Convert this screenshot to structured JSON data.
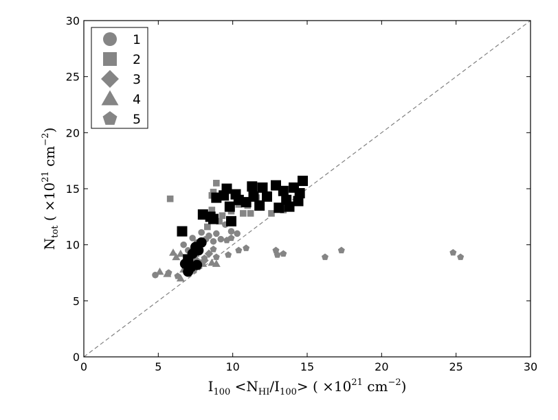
{
  "chart_data": {
    "type": "scatter",
    "xlim": [
      0,
      30
    ],
    "ylim": [
      0,
      30
    ],
    "xticks": [
      "0",
      "5",
      "10",
      "15",
      "20",
      "25",
      "30"
    ],
    "yticks": [
      "0",
      "5",
      "10",
      "15",
      "20",
      "25",
      "30"
    ],
    "xlabel": {
      "base": "I",
      "sub": "100",
      "mid1": " <N",
      "sub2": "HI",
      "mid2": "/I",
      "sub3": "100",
      "mid3": "> ( ×10",
      "sup": "21",
      "mid4": " cm",
      "sup2": "−2",
      "end": ")"
    },
    "ylabel": {
      "base": "N",
      "sub": "tot",
      "mid1": " ( ×10",
      "sup": "21",
      "mid2": " cm",
      "sup2": "−2",
      "end": ")"
    },
    "reference_line": {
      "style": "dashed",
      "color": "#808080",
      "from": [
        0,
        0
      ],
      "to": [
        30,
        30
      ]
    },
    "legend": {
      "placement": "top-left",
      "entries": [
        {
          "label": "1",
          "marker": "circle"
        },
        {
          "label": "2",
          "marker": "square"
        },
        {
          "label": "3",
          "marker": "diamond"
        },
        {
          "label": "4",
          "marker": "triangle"
        },
        {
          "label": "5",
          "marker": "pentagon"
        }
      ]
    },
    "colors": {
      "gray": "#858585",
      "black": "#000000"
    },
    "series": [
      {
        "marker": "circle",
        "color": "gray",
        "size": "small",
        "points": [
          [
            4.8,
            7.3
          ],
          [
            6.7,
            10.0
          ],
          [
            7.0,
            9.5
          ],
          [
            7.3,
            10.6
          ],
          [
            7.6,
            10.2
          ],
          [
            7.9,
            11.1
          ],
          [
            8.2,
            10.5
          ],
          [
            8.4,
            10.8
          ],
          [
            8.7,
            10.3
          ],
          [
            8.9,
            11.0
          ],
          [
            9.2,
            10.5
          ],
          [
            9.5,
            11.8
          ],
          [
            9.9,
            11.2
          ],
          [
            10.3,
            11.0
          ],
          [
            7.1,
            8.6
          ],
          [
            7.5,
            8.0
          ]
        ]
      },
      {
        "marker": "square",
        "color": "gray",
        "size": "small",
        "points": [
          [
            5.8,
            14.1
          ],
          [
            8.3,
            11.6
          ],
          [
            8.6,
            14.4
          ],
          [
            8.7,
            14.7
          ],
          [
            8.9,
            15.5
          ],
          [
            8.6,
            13.1
          ],
          [
            9.1,
            12.1
          ],
          [
            9.3,
            12.6
          ],
          [
            9.9,
            13.0
          ],
          [
            10.4,
            13.6
          ],
          [
            10.7,
            12.8
          ],
          [
            11.0,
            13.5
          ],
          [
            11.2,
            12.8
          ],
          [
            12.6,
            12.8
          ],
          [
            13.4,
            13.1
          ],
          [
            11.6,
            14.2
          ],
          [
            12.2,
            14.3
          ]
        ]
      },
      {
        "marker": "diamond",
        "color": "gray",
        "size": "small",
        "points": [
          [
            7.2,
            8.2
          ],
          [
            7.5,
            8.7
          ],
          [
            7.7,
            9.5
          ],
          [
            8.1,
            8.6
          ],
          [
            8.4,
            9.2
          ]
        ]
      },
      {
        "marker": "triangle",
        "color": "gray",
        "size": "small",
        "points": [
          [
            5.1,
            7.6
          ],
          [
            5.6,
            7.4
          ],
          [
            6.0,
            9.3
          ],
          [
            6.2,
            8.9
          ],
          [
            6.5,
            9.2
          ],
          [
            6.5,
            7.0
          ],
          [
            6.7,
            7.8
          ],
          [
            6.9,
            8.2
          ],
          [
            7.2,
            8.4
          ],
          [
            8.0,
            8.3
          ],
          [
            8.6,
            8.4
          ],
          [
            8.9,
            8.3
          ],
          [
            7.5,
            9.2
          ]
        ]
      },
      {
        "marker": "pentagon",
        "color": "gray",
        "size": "small",
        "points": [
          [
            5.7,
            7.5
          ],
          [
            6.3,
            7.2
          ],
          [
            7.4,
            7.7
          ],
          [
            7.8,
            8.4
          ],
          [
            8.1,
            8.8
          ],
          [
            8.7,
            9.6
          ],
          [
            8.9,
            8.9
          ],
          [
            9.6,
            10.4
          ],
          [
            9.7,
            9.1
          ],
          [
            10.4,
            9.5
          ],
          [
            10.9,
            9.7
          ],
          [
            12.9,
            9.5
          ],
          [
            13.0,
            9.1
          ],
          [
            13.4,
            9.2
          ],
          [
            16.2,
            8.9
          ],
          [
            17.3,
            9.5
          ],
          [
            24.8,
            9.3
          ],
          [
            25.3,
            8.9
          ],
          [
            9.9,
            10.6
          ]
        ]
      },
      {
        "marker": "circle",
        "color": "black",
        "size": "large",
        "points": [
          [
            6.8,
            8.3
          ],
          [
            7.0,
            7.6
          ],
          [
            7.2,
            8.0
          ],
          [
            7.3,
            9.2
          ],
          [
            7.5,
            9.8
          ],
          [
            7.7,
            9.5
          ],
          [
            7.9,
            10.2
          ],
          [
            7.6,
            8.2
          ]
        ]
      },
      {
        "marker": "square",
        "color": "black",
        "size": "large",
        "points": [
          [
            6.6,
            11.2
          ],
          [
            7.0,
            8.7
          ],
          [
            8.0,
            12.7
          ],
          [
            8.5,
            12.5
          ],
          [
            8.7,
            12.3
          ],
          [
            8.9,
            14.2
          ],
          [
            9.4,
            14.4
          ],
          [
            9.6,
            15.0
          ],
          [
            9.9,
            12.1
          ],
          [
            9.8,
            13.4
          ],
          [
            10.2,
            14.5
          ],
          [
            10.4,
            14.0
          ],
          [
            10.9,
            13.8
          ],
          [
            11.3,
            15.2
          ],
          [
            11.4,
            14.3
          ],
          [
            11.8,
            13.5
          ],
          [
            12.0,
            15.1
          ],
          [
            12.3,
            14.3
          ],
          [
            12.9,
            15.3
          ],
          [
            13.1,
            13.3
          ],
          [
            13.4,
            14.8
          ],
          [
            13.6,
            14.0
          ],
          [
            13.8,
            13.4
          ],
          [
            14.1,
            15.1
          ],
          [
            14.4,
            13.9
          ],
          [
            14.5,
            14.6
          ],
          [
            14.7,
            15.7
          ]
        ]
      }
    ]
  }
}
